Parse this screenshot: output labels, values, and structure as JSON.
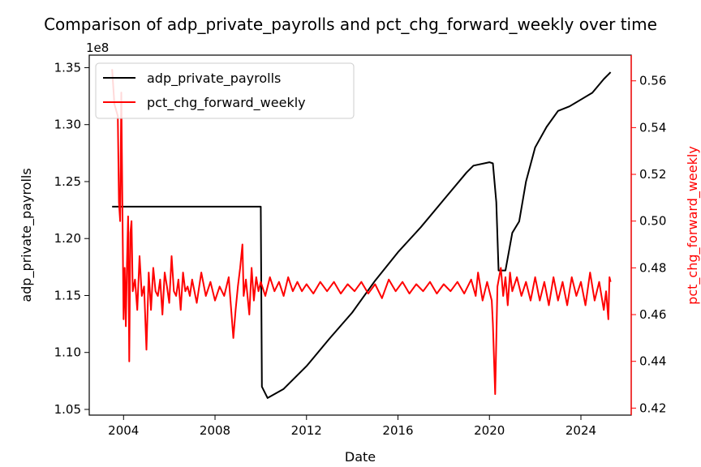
{
  "chart_data": {
    "type": "line",
    "title": "Comparison of adp_private_payrolls and pct_chg_forward_weekly over time",
    "xlabel": "Date",
    "ylabel_left": "adp_private_payrolls",
    "ylabel_right": "pct_chg_forward_weekly",
    "left_axis_multiplier": "1e8",
    "x_ticks": [
      "2004",
      "2008",
      "2012",
      "2016",
      "2020",
      "2024"
    ],
    "x_tick_years": [
      2004,
      2008,
      2012,
      2016,
      2020,
      2024
    ],
    "xlim": [
      2002.5,
      2026.2
    ],
    "left_ticks": [
      "1.05",
      "1.10",
      "1.15",
      "1.20",
      "1.25",
      "1.30",
      "1.35"
    ],
    "left_tick_values": [
      1.05,
      1.1,
      1.15,
      1.2,
      1.25,
      1.3,
      1.35
    ],
    "ylim_left": [
      1.045,
      1.361
    ],
    "right_ticks": [
      "0.42",
      "0.44",
      "0.46",
      "0.48",
      "0.50",
      "0.52",
      "0.54",
      "0.56"
    ],
    "right_tick_values": [
      0.42,
      0.44,
      0.46,
      0.48,
      0.5,
      0.52,
      0.54,
      0.56
    ],
    "ylim_right": [
      0.417,
      0.571
    ],
    "legend_position": "top-left",
    "colors": {
      "left": "#000000",
      "right": "#ff0000"
    },
    "series": [
      {
        "name": "adp_private_payrolls",
        "axis": "left",
        "color": "#000000",
        "points": [
          [
            2003.5,
            1.228
          ],
          [
            2010.0,
            1.228
          ],
          [
            2010.05,
            1.07
          ],
          [
            2010.3,
            1.06
          ],
          [
            2011.0,
            1.068
          ],
          [
            2012.0,
            1.088
          ],
          [
            2013.0,
            1.112
          ],
          [
            2014.0,
            1.135
          ],
          [
            2015.0,
            1.163
          ],
          [
            2016.0,
            1.188
          ],
          [
            2017.0,
            1.21
          ],
          [
            2018.0,
            1.234
          ],
          [
            2019.0,
            1.258
          ],
          [
            2019.3,
            1.264
          ],
          [
            2020.0,
            1.267
          ],
          [
            2020.15,
            1.266
          ],
          [
            2020.3,
            1.232
          ],
          [
            2020.4,
            1.172
          ],
          [
            2020.7,
            1.172
          ],
          [
            2021.0,
            1.205
          ],
          [
            2021.3,
            1.215
          ],
          [
            2021.6,
            1.25
          ],
          [
            2022.0,
            1.28
          ],
          [
            2022.5,
            1.298
          ],
          [
            2023.0,
            1.312
          ],
          [
            2023.5,
            1.316
          ],
          [
            2024.0,
            1.322
          ],
          [
            2024.5,
            1.328
          ],
          [
            2025.0,
            1.34
          ],
          [
            2025.3,
            1.346
          ]
        ]
      },
      {
        "name": "pct_chg_forward_weekly",
        "axis": "right",
        "color": "#ff0000",
        "points": [
          [
            2003.5,
            0.565
          ],
          [
            2003.6,
            0.55
          ],
          [
            2003.75,
            0.545
          ],
          [
            2003.8,
            0.508
          ],
          [
            2003.85,
            0.5
          ],
          [
            2003.9,
            0.555
          ],
          [
            2003.95,
            0.505
          ],
          [
            2004.0,
            0.458
          ],
          [
            2004.05,
            0.48
          ],
          [
            2004.1,
            0.455
          ],
          [
            2004.15,
            0.482
          ],
          [
            2004.2,
            0.502
          ],
          [
            2004.25,
            0.44
          ],
          [
            2004.3,
            0.495
          ],
          [
            2004.35,
            0.5
          ],
          [
            2004.4,
            0.47
          ],
          [
            2004.5,
            0.475
          ],
          [
            2004.6,
            0.462
          ],
          [
            2004.7,
            0.485
          ],
          [
            2004.8,
            0.468
          ],
          [
            2004.9,
            0.472
          ],
          [
            2005.0,
            0.445
          ],
          [
            2005.1,
            0.478
          ],
          [
            2005.2,
            0.462
          ],
          [
            2005.3,
            0.48
          ],
          [
            2005.4,
            0.47
          ],
          [
            2005.5,
            0.468
          ],
          [
            2005.6,
            0.475
          ],
          [
            2005.7,
            0.46
          ],
          [
            2005.8,
            0.478
          ],
          [
            2005.9,
            0.472
          ],
          [
            2006.0,
            0.465
          ],
          [
            2006.1,
            0.485
          ],
          [
            2006.2,
            0.47
          ],
          [
            2006.3,
            0.468
          ],
          [
            2006.4,
            0.475
          ],
          [
            2006.5,
            0.462
          ],
          [
            2006.6,
            0.478
          ],
          [
            2006.7,
            0.47
          ],
          [
            2006.8,
            0.472
          ],
          [
            2006.9,
            0.468
          ],
          [
            2007.0,
            0.475
          ],
          [
            2007.2,
            0.465
          ],
          [
            2007.4,
            0.478
          ],
          [
            2007.6,
            0.468
          ],
          [
            2007.8,
            0.474
          ],
          [
            2008.0,
            0.466
          ],
          [
            2008.2,
            0.472
          ],
          [
            2008.4,
            0.468
          ],
          [
            2008.6,
            0.476
          ],
          [
            2008.8,
            0.45
          ],
          [
            2008.9,
            0.462
          ],
          [
            2009.0,
            0.472
          ],
          [
            2009.1,
            0.48
          ],
          [
            2009.2,
            0.49
          ],
          [
            2009.25,
            0.468
          ],
          [
            2009.35,
            0.475
          ],
          [
            2009.5,
            0.46
          ],
          [
            2009.6,
            0.48
          ],
          [
            2009.7,
            0.466
          ],
          [
            2009.8,
            0.476
          ],
          [
            2009.9,
            0.47
          ],
          [
            2010.0,
            0.474
          ],
          [
            2010.2,
            0.468
          ],
          [
            2010.4,
            0.476
          ],
          [
            2010.6,
            0.47
          ],
          [
            2010.8,
            0.474
          ],
          [
            2011.0,
            0.468
          ],
          [
            2011.2,
            0.476
          ],
          [
            2011.4,
            0.47
          ],
          [
            2011.6,
            0.474
          ],
          [
            2011.8,
            0.47
          ],
          [
            2012.0,
            0.473
          ],
          [
            2012.3,
            0.469
          ],
          [
            2012.6,
            0.474
          ],
          [
            2012.9,
            0.47
          ],
          [
            2013.2,
            0.474
          ],
          [
            2013.5,
            0.469
          ],
          [
            2013.8,
            0.473
          ],
          [
            2014.1,
            0.47
          ],
          [
            2014.4,
            0.474
          ],
          [
            2014.7,
            0.469
          ],
          [
            2015.0,
            0.473
          ],
          [
            2015.3,
            0.467
          ],
          [
            2015.6,
            0.475
          ],
          [
            2015.9,
            0.47
          ],
          [
            2016.2,
            0.474
          ],
          [
            2016.5,
            0.469
          ],
          [
            2016.8,
            0.473
          ],
          [
            2017.1,
            0.47
          ],
          [
            2017.4,
            0.474
          ],
          [
            2017.7,
            0.469
          ],
          [
            2018.0,
            0.473
          ],
          [
            2018.3,
            0.47
          ],
          [
            2018.6,
            0.474
          ],
          [
            2018.9,
            0.469
          ],
          [
            2019.2,
            0.475
          ],
          [
            2019.4,
            0.468
          ],
          [
            2019.5,
            0.478
          ],
          [
            2019.7,
            0.466
          ],
          [
            2019.9,
            0.474
          ],
          [
            2020.0,
            0.47
          ],
          [
            2020.1,
            0.466
          ],
          [
            2020.15,
            0.456
          ],
          [
            2020.25,
            0.426
          ],
          [
            2020.35,
            0.472
          ],
          [
            2020.5,
            0.48
          ],
          [
            2020.6,
            0.468
          ],
          [
            2020.7,
            0.476
          ],
          [
            2020.8,
            0.464
          ],
          [
            2020.9,
            0.478
          ],
          [
            2021.0,
            0.47
          ],
          [
            2021.2,
            0.476
          ],
          [
            2021.4,
            0.468
          ],
          [
            2021.6,
            0.474
          ],
          [
            2021.8,
            0.466
          ],
          [
            2022.0,
            0.476
          ],
          [
            2022.2,
            0.466
          ],
          [
            2022.4,
            0.474
          ],
          [
            2022.6,
            0.464
          ],
          [
            2022.8,
            0.476
          ],
          [
            2023.0,
            0.466
          ],
          [
            2023.2,
            0.474
          ],
          [
            2023.4,
            0.464
          ],
          [
            2023.6,
            0.476
          ],
          [
            2023.8,
            0.468
          ],
          [
            2024.0,
            0.474
          ],
          [
            2024.2,
            0.464
          ],
          [
            2024.4,
            0.478
          ],
          [
            2024.6,
            0.466
          ],
          [
            2024.8,
            0.474
          ],
          [
            2025.0,
            0.462
          ],
          [
            2025.1,
            0.47
          ],
          [
            2025.2,
            0.458
          ],
          [
            2025.25,
            0.476
          ],
          [
            2025.3,
            0.474
          ]
        ]
      }
    ]
  }
}
